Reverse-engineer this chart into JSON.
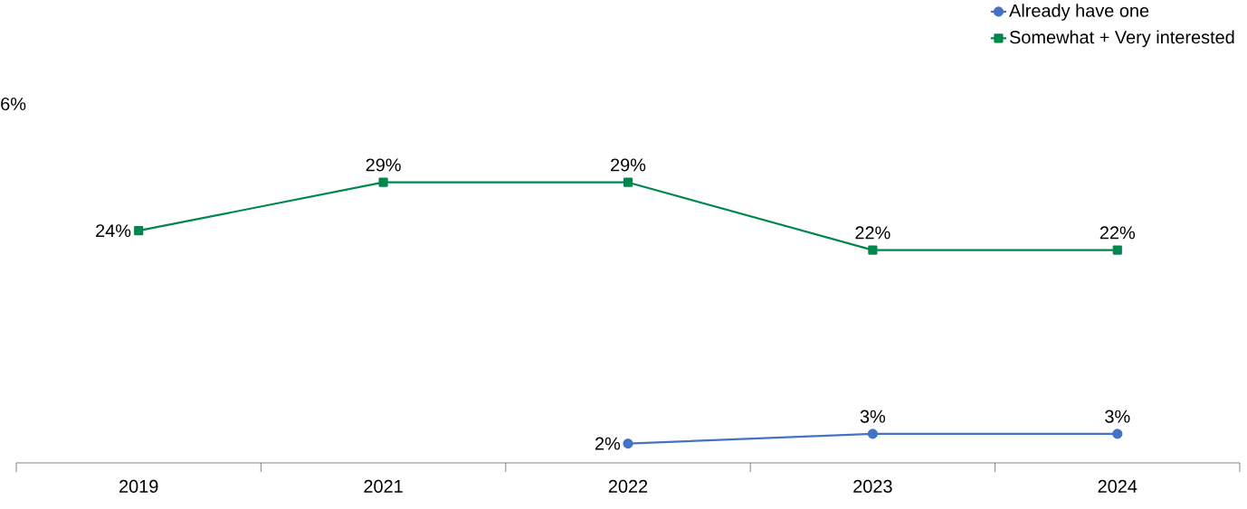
{
  "chart_data": {
    "type": "line",
    "categories": [
      "2019",
      "2021",
      "2022",
      "2023",
      "2024"
    ],
    "series": [
      {
        "name": "Already have one",
        "color": "#4472c4",
        "marker": "circle",
        "values": [
          null,
          null,
          2,
          3,
          3
        ],
        "value_labels": [
          null,
          null,
          "2%",
          "3%",
          "3%"
        ]
      },
      {
        "name": "Somewhat + Very interested",
        "color": "#00874d",
        "marker": "square",
        "values": [
          24,
          29,
          29,
          22,
          22
        ],
        "value_labels": [
          "24%",
          "29%",
          "29%",
          "22%",
          "22%"
        ]
      }
    ],
    "tick_labels": "x",
    "legend": "top right",
    "line_style": "solid",
    "grid": false,
    "annotations": [
      "6%"
    ]
  }
}
